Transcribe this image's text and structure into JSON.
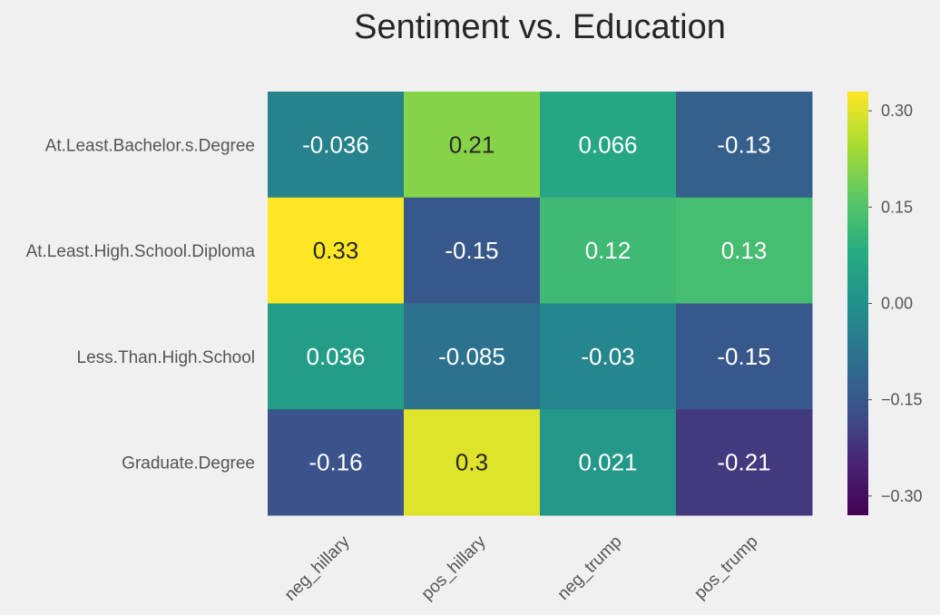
{
  "chart_data": {
    "type": "heatmap",
    "title": "Sentiment vs. Education",
    "xlabel": "",
    "ylabel": "",
    "rows": [
      "At.Least.Bachelor.s.Degree",
      "At.Least.High.School.Diploma",
      "Less.Than.High.School",
      "Graduate.Degree"
    ],
    "columns": [
      "neg_hillary",
      "pos_hillary",
      "neg_trump",
      "pos_trump"
    ],
    "values": [
      [
        -0.036,
        0.21,
        0.066,
        -0.13
      ],
      [
        0.33,
        -0.15,
        0.12,
        0.13
      ],
      [
        0.036,
        -0.085,
        -0.03,
        -0.15
      ],
      [
        -0.16,
        0.3,
        0.021,
        -0.21
      ]
    ],
    "value_labels": [
      [
        "-0.036",
        "0.21",
        "0.066",
        "-0.13"
      ],
      [
        "0.33",
        "-0.15",
        "0.12",
        "0.13"
      ],
      [
        "0.036",
        "-0.085",
        "-0.03",
        "-0.15"
      ],
      [
        "-0.16",
        "0.3",
        "0.021",
        "-0.21"
      ]
    ],
    "colormap": "viridis",
    "vmin": -0.33,
    "vmax": 0.33,
    "colorbar_ticks": [
      0.3,
      0.15,
      0.0,
      -0.15,
      -0.3
    ],
    "colorbar_tick_labels": [
      "0.30",
      "0.15",
      "0.00",
      "−0.15",
      "−0.30"
    ],
    "grid": false,
    "legend": "colorbar-right"
  }
}
